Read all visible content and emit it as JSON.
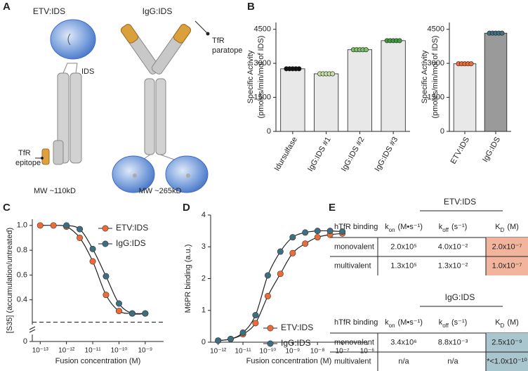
{
  "panels": [
    "A",
    "B",
    "C",
    "D",
    "E"
  ],
  "diagram": {
    "etv_title": "ETV:IDS",
    "igg_title": "IgG:IDS",
    "ids_label": "IDS",
    "tfr_epitope": [
      "TfR",
      "epitope"
    ],
    "tfr_paratope": [
      "TfR",
      "paratope"
    ],
    "etv_mw": "MW ~110kD",
    "igg_mw": "MW ~265kD"
  },
  "chart_data": [
    {
      "type": "bar",
      "ylabel": [
        "Specific Activity",
        "(pmoles/min/mol of IDS)"
      ],
      "categories": [
        "Idursulfase",
        "IgG:IDS #1",
        "IgG:IDS #2",
        "IgG:IDS #3"
      ],
      "values": [
        2760,
        2540,
        3600,
        4000
      ],
      "bar_colors": [
        "#e8e8e8",
        "#e8e8e8",
        "#e8e8e8",
        "#e8e8e8"
      ],
      "point_colors": [
        "#111111",
        "#c5e0a5",
        "#7cc068",
        "#3f9a40"
      ],
      "ylim": [
        0,
        4800
      ],
      "yticks": [
        0,
        1500,
        3000,
        4500
      ]
    },
    {
      "type": "bar",
      "ylabel": [
        "Specific Activity",
        "(pmoles/min/mol of IDS)"
      ],
      "categories": [
        "ETV:IDS",
        "IgG:IDS"
      ],
      "values": [
        2980,
        4330
      ],
      "bar_colors": [
        "#e8e8e8",
        "#9a9a9a"
      ],
      "point_colors": [
        "#ee6a36",
        "#3d6f80"
      ],
      "ylim": [
        0,
        4800
      ],
      "yticks": [
        0,
        1500,
        3000,
        4500
      ]
    },
    {
      "type": "line",
      "ylabel": "[S35] (accumulation/untreated)",
      "xlabel": "Fusion concentration (M)",
      "log_x": true,
      "xlim": [
        5e-14,
        5e-09
      ],
      "xticks": [
        {
          "value": 1e-13,
          "label": "10⁻¹³"
        },
        {
          "value": 1e-12,
          "label": "10⁻¹²"
        },
        {
          "value": 1e-11,
          "label": "10⁻¹¹"
        },
        {
          "value": 1e-10,
          "label": "10⁻¹⁰"
        },
        {
          "value": 1e-09,
          "label": "10⁻⁹"
        }
      ],
      "ylim": [
        0,
        1.05
      ],
      "ybreak": [
        0.02,
        0.2
      ],
      "yticks": [
        0,
        0.4,
        0.6,
        0.8,
        {
          "value": 1.0,
          "label": "1.0"
        }
      ],
      "hline": 0.22,
      "series": [
        {
          "name": "ETV:IDS",
          "color": "#ee6a36",
          "x": [
            1e-13,
            3.2e-13,
            1e-12,
            3.2e-12,
            1e-11,
            3.2e-11,
            1e-10,
            3.2e-10,
            1e-09
          ],
          "values": [
            1.0,
            1.0,
            0.99,
            0.9,
            0.71,
            0.44,
            0.31,
            0.29,
            0.29
          ]
        },
        {
          "name": "IgG:IDS",
          "color": "#3d6f80",
          "x": [
            1e-12,
            3.2e-12,
            1e-11,
            3.2e-11,
            1e-10,
            3.2e-10,
            1e-09
          ],
          "values": [
            1.0,
            0.97,
            0.81,
            0.59,
            0.37,
            0.29,
            0.29
          ]
        }
      ]
    },
    {
      "type": "line",
      "ylabel": "M6PR binding (a.u.)",
      "xlabel": "Fusion concentration (M)",
      "log_x": true,
      "xlim": [
        5e-13,
        1e-06
      ],
      "xticks": [
        {
          "value": 1e-12,
          "label": "10⁻¹²"
        },
        {
          "value": 1e-11,
          "label": "10⁻¹¹"
        },
        {
          "value": 1e-10,
          "label": "10⁻¹⁰"
        },
        {
          "value": 1e-09,
          "label": "10⁻⁹"
        },
        {
          "value": 1e-08,
          "label": "10⁻⁸"
        },
        {
          "value": 1e-07,
          "label": "10⁻⁷"
        },
        {
          "value": 1e-06,
          "label": "10⁻⁶"
        }
      ],
      "ylim": [
        0,
        4
      ],
      "yticks": [
        0,
        1,
        2,
        3,
        4
      ],
      "series": [
        {
          "name": "ETV:IDS",
          "color": "#ee6a36",
          "x": [
            1e-12,
            3.2e-12,
            1e-11,
            3.2e-11,
            1e-10,
            3.2e-10,
            1e-09,
            3.2e-09,
            1e-08,
            3.2e-08,
            1e-07
          ],
          "values": [
            0.05,
            0.1,
            0.25,
            0.6,
            1.45,
            2.15,
            2.8,
            3.1,
            3.3,
            3.38,
            3.42
          ]
        },
        {
          "name": "IgG:IDS",
          "color": "#3d6f80",
          "x": [
            1e-12,
            3.2e-12,
            1e-11,
            3.2e-11,
            1e-10,
            3.2e-10,
            1e-09,
            3.2e-09,
            1e-08,
            3.2e-08,
            1e-07
          ],
          "values": [
            0.05,
            0.1,
            0.3,
            0.85,
            2.1,
            2.85,
            3.3,
            3.45,
            3.5,
            3.5,
            3.48
          ]
        }
      ]
    }
  ],
  "table": {
    "columns": [
      "hTfR binding",
      {
        "symbol": "k",
        "sub": "on",
        "unit": "(M•s⁻¹)"
      },
      {
        "symbol": "k",
        "sub": "off",
        "unit": "(s⁻¹)"
      },
      {
        "symbol": "K",
        "sub": "D",
        "unit": "(M)"
      }
    ],
    "groups": [
      {
        "title": "ETV:IDS",
        "color": "#f2b49c",
        "rows": [
          [
            "monovalent",
            "2.0x10⁵",
            "4.0x10⁻²",
            "2.0x10⁻⁷"
          ],
          [
            "multivalent",
            "1.3x10⁵",
            "1.3x10⁻²",
            "1.0x10⁻⁷"
          ]
        ]
      },
      {
        "title": "IgG:IDS",
        "color": "#a9c5cd",
        "rows": [
          [
            "monovalent",
            "3.4x10⁶",
            "8.8x10⁻³",
            "2.5x10⁻⁹"
          ],
          [
            "multivalent",
            "n/a",
            "n/a",
            "*<1.0x10⁻¹⁰"
          ]
        ]
      }
    ]
  }
}
